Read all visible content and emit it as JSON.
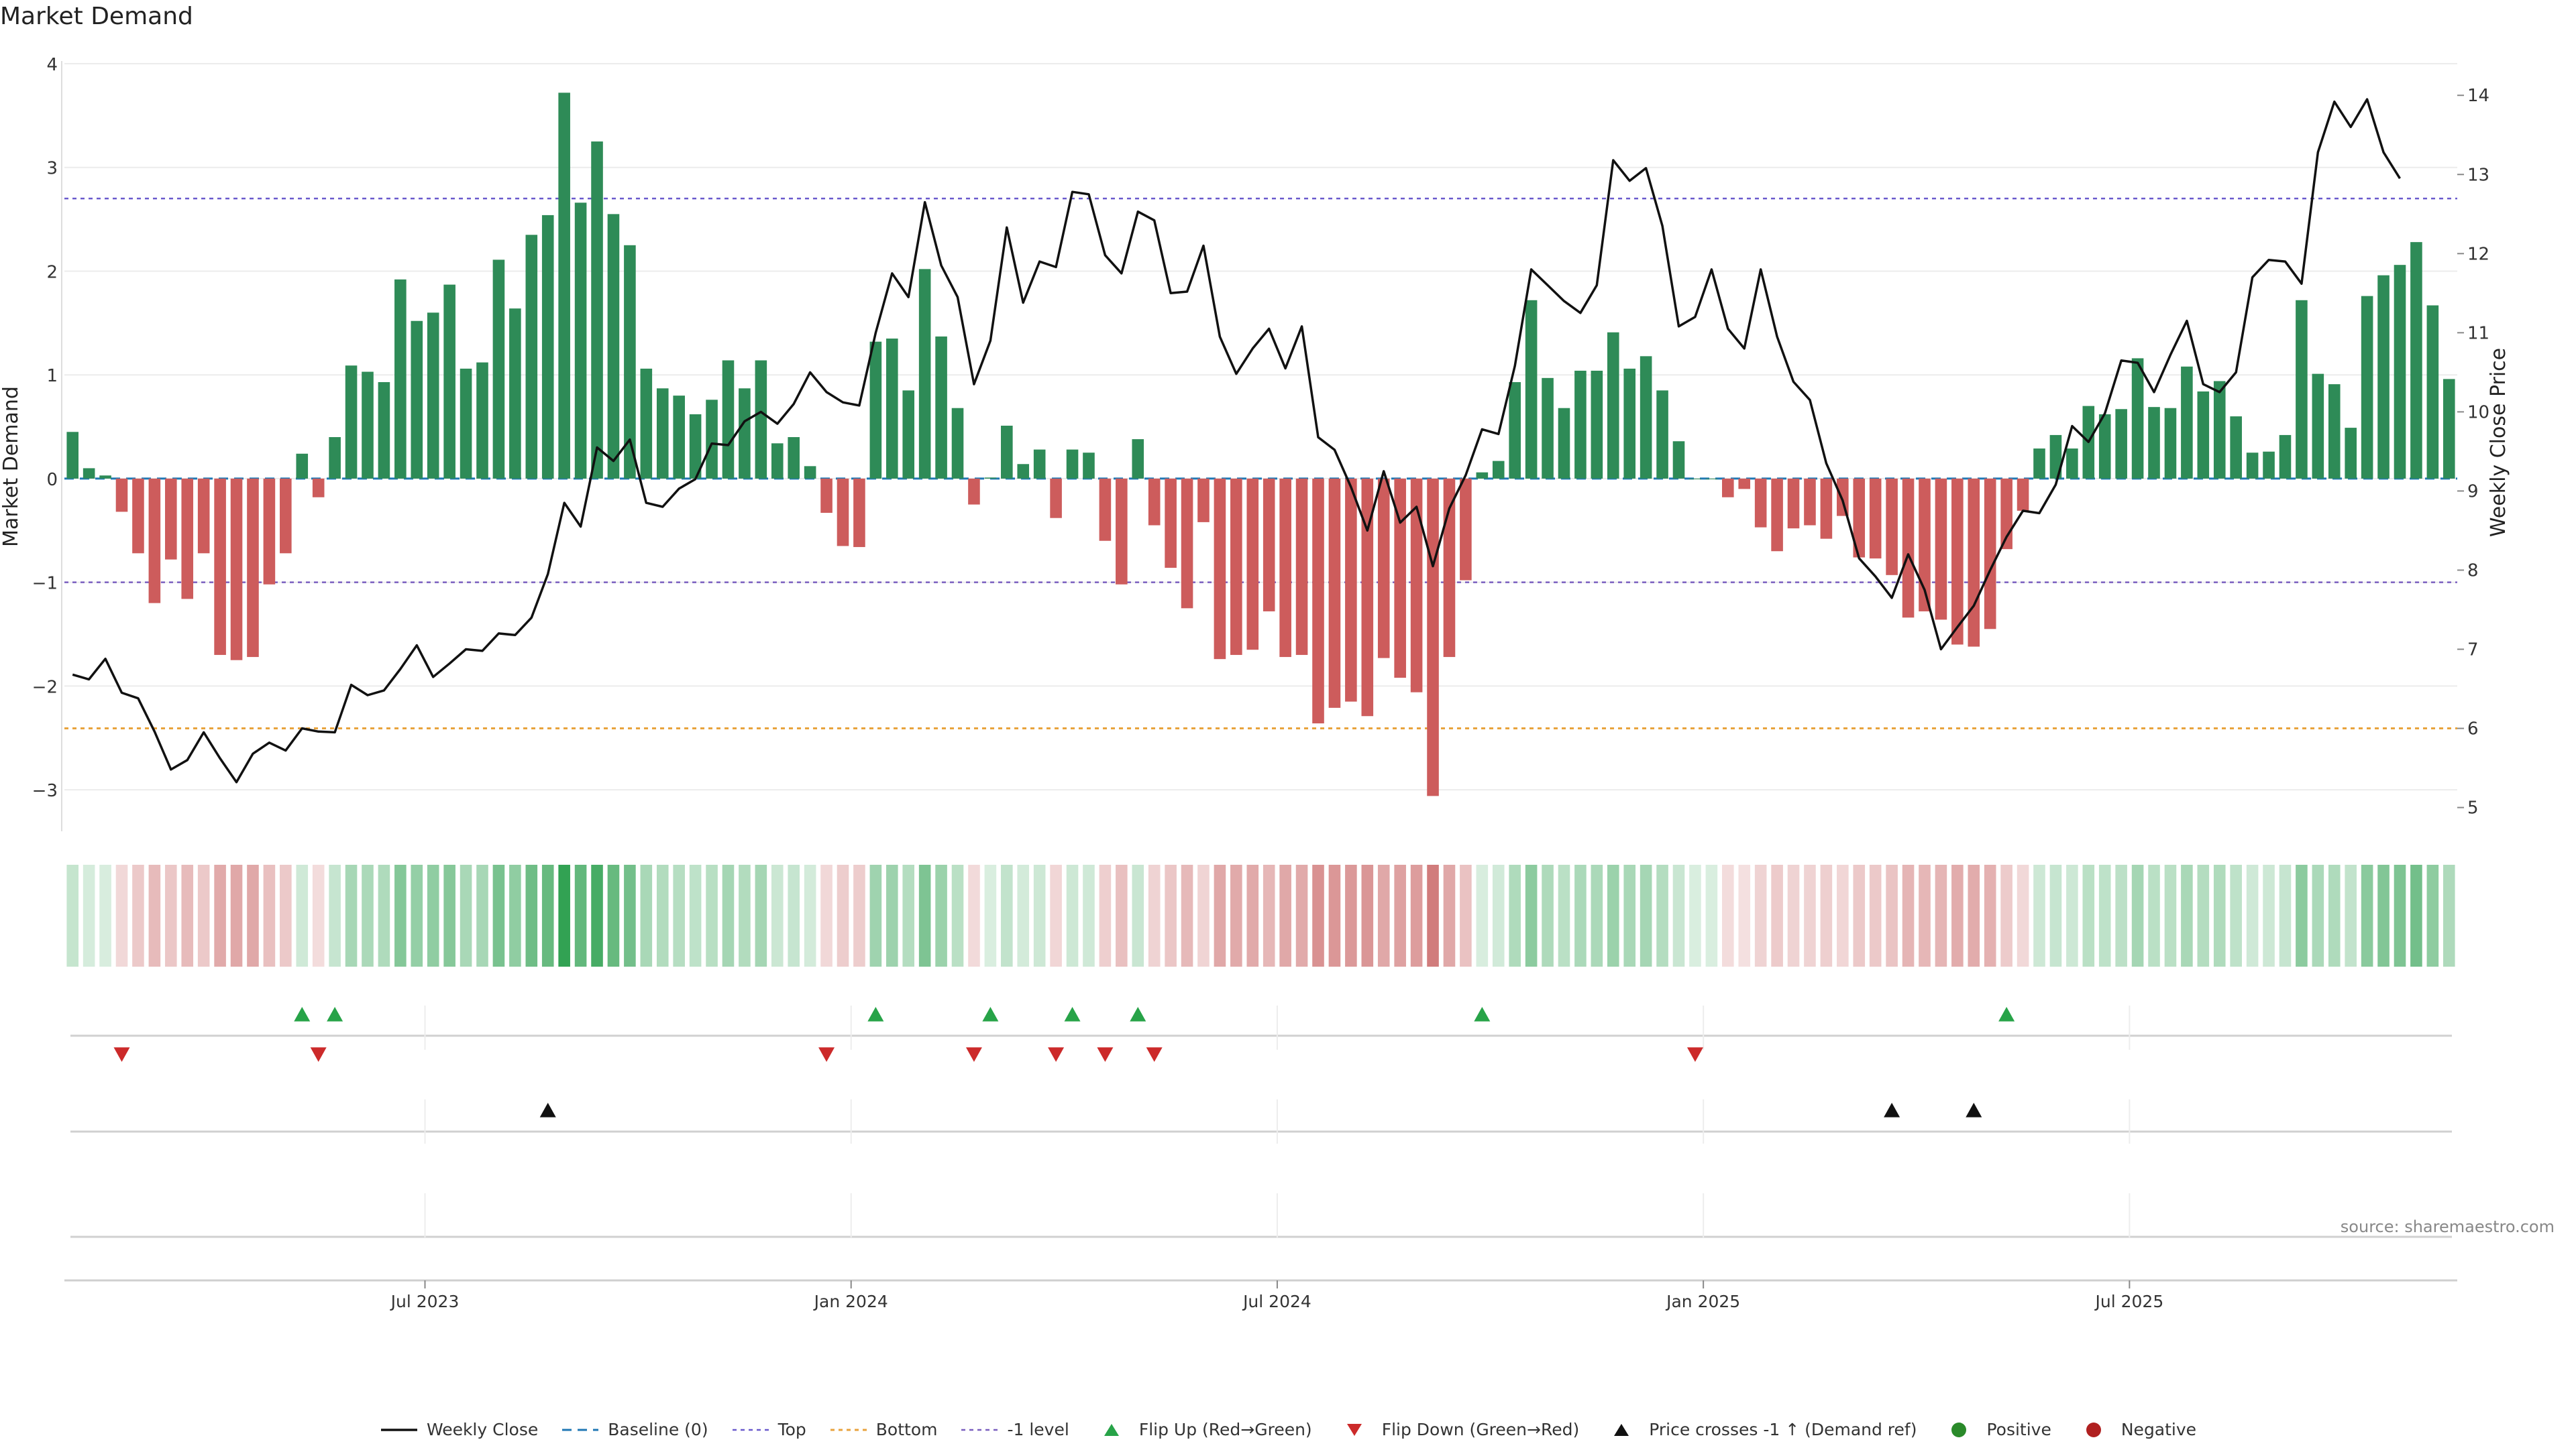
{
  "chart_data": {
    "type": "bar",
    "title": "Market Demand",
    "ylabel": "Market Demand",
    "y2label": "Weekly Close Price",
    "ylim": [
      -3.4,
      4.0
    ],
    "y2lim": [
      4.7,
      14.4
    ],
    "yticks": [
      4,
      3,
      2,
      1,
      0,
      -1,
      -2,
      -3
    ],
    "y2ticks": [
      14,
      13,
      12,
      11,
      10,
      9,
      8,
      7,
      6,
      5
    ],
    "x_date_labels": [
      "Jul 2023",
      "Jan 2024",
      "Jul 2024",
      "Jan 2025",
      "Jul 2025"
    ],
    "x_date_label_positions_week_index": [
      22,
      48,
      74,
      100,
      126
    ],
    "reference_lines": {
      "top": 2.7,
      "bottom": -2.4,
      "minus_one_level": -1.0,
      "baseline": 0
    },
    "demand": [
      0.45,
      0.1,
      0.03,
      -0.32,
      -0.72,
      -1.2,
      -0.78,
      -1.16,
      -0.72,
      -1.7,
      -1.75,
      -1.72,
      -1.02,
      -0.72,
      0.24,
      -0.18,
      0.4,
      1.09,
      1.03,
      0.93,
      1.92,
      1.52,
      1.6,
      1.87,
      1.06,
      1.12,
      2.11,
      1.64,
      2.35,
      2.54,
      3.72,
      2.66,
      3.25,
      2.55,
      2.25,
      1.06,
      0.87,
      0.8,
      0.62,
      0.76,
      1.14,
      0.87,
      1.14,
      0.34,
      0.4,
      0.12,
      -0.33,
      -0.65,
      -0.66,
      1.32,
      1.35,
      0.85,
      2.02,
      1.37,
      0.68,
      -0.25,
      0.01,
      0.51,
      0.14,
      0.28,
      -0.38,
      0.28,
      0.25,
      -0.6,
      -1.02,
      0.38,
      -0.45,
      -0.86,
      -1.25,
      -0.42,
      -1.74,
      -1.7,
      -1.65,
      -1.28,
      -1.72,
      -1.7,
      -2.36,
      -2.21,
      -2.15,
      -2.29,
      -1.73,
      -1.92,
      -2.06,
      -3.06,
      -1.72,
      -0.98,
      0.06,
      0.17,
      0.93,
      1.72,
      0.97,
      0.68,
      1.04,
      1.04,
      1.41,
      1.06,
      1.18,
      0.85,
      0.36,
      0,
      0,
      -0.18,
      -0.1,
      -0.47,
      -0.7,
      -0.48,
      -0.45,
      -0.58,
      -0.36,
      -0.76,
      -0.77,
      -0.93,
      -1.34,
      -1.28,
      -1.36,
      -1.6,
      -1.62,
      -1.45,
      -0.68,
      -0.31,
      0.29,
      0.42,
      0.29,
      0.7,
      0.62,
      0.67,
      1.16,
      0.69,
      0.68,
      1.08,
      0.84,
      0.94,
      0.6,
      0.25,
      0.26,
      0.42,
      1.72,
      1.01,
      0.91,
      0.49,
      1.76,
      1.96,
      2.06,
      2.28,
      1.67,
      0.96
    ],
    "weekly_close": [
      6.68,
      6.62,
      6.88,
      6.45,
      6.38,
      5.96,
      5.48,
      5.6,
      5.95,
      5.62,
      5.32,
      5.68,
      5.82,
      5.72,
      6.0,
      5.96,
      5.95,
      6.55,
      6.42,
      6.48,
      6.75,
      7.05,
      6.65,
      6.82,
      7.0,
      6.98,
      7.2,
      7.18,
      7.4,
      7.95,
      8.85,
      8.55,
      9.55,
      9.38,
      9.65,
      8.85,
      8.8,
      9.03,
      9.15,
      9.6,
      9.58,
      9.88,
      10.0,
      9.85,
      10.1,
      10.5,
      10.25,
      10.12,
      10.08,
      11.0,
      11.75,
      11.45,
      12.65,
      11.85,
      11.45,
      10.35,
      10.9,
      12.33,
      11.38,
      11.9,
      11.83,
      12.78,
      12.75,
      11.98,
      11.75,
      12.53,
      12.42,
      11.5,
      11.52,
      12.1,
      10.95,
      10.48,
      10.8,
      11.05,
      10.55,
      11.08,
      9.68,
      9.52,
      9.05,
      8.5,
      9.25,
      8.6,
      8.8,
      8.05,
      8.78,
      9.2,
      9.78,
      9.72,
      10.58,
      11.8,
      11.6,
      11.4,
      11.25,
      11.6,
      13.18,
      12.92,
      13.08,
      12.35,
      11.08,
      11.2,
      11.8,
      11.05,
      10.8,
      11.8,
      10.95,
      10.38,
      10.15,
      9.35,
      8.88,
      8.15,
      7.92,
      7.65,
      8.2,
      7.75,
      7.0,
      7.28,
      7.55,
      8.0,
      8.42,
      8.75,
      8.72,
      9.08,
      9.82,
      9.62,
      9.98,
      10.65,
      10.62,
      10.25,
      10.72,
      11.15,
      10.35,
      10.25,
      10.5,
      11.7,
      11.92,
      11.9,
      11.62,
      13.28,
      13.92,
      13.6,
      13.95,
      13.28,
      12.95
    ],
    "flip_up_week_index": [
      14,
      16,
      49,
      56,
      61,
      65,
      86,
      118
    ],
    "flip_down_week_index": [
      3,
      15,
      46,
      55,
      60,
      63,
      66,
      99
    ],
    "price_crosses_minus1_up_week_index": [
      29,
      111,
      116
    ],
    "heatmap_strip": "one cell per week, colored by demand sign and magnitude",
    "legend": [
      "Weekly Close",
      "Baseline (0)",
      "Top",
      "Bottom",
      "-1 level",
      "Flip Up (Red→Green)",
      "Flip Down (Green→Red)",
      "Price crosses -1 ↑ (Demand ref)",
      "Positive",
      "Negative"
    ],
    "colors": {
      "positive": "#2e8b57",
      "negative": "#cd5c5c",
      "price": "#111111",
      "top": "#6a5acd",
      "bottom": "#e8a33d",
      "minus_one": "#7a5fbf",
      "baseline": "#1f77b4",
      "flip_up": "#27a348",
      "flip_down": "#cc2a2a",
      "cross_up": "#111111",
      "legend_positive": "#2a8a2a",
      "legend_negative": "#b02020"
    }
  },
  "source_label": "source: sharemaestro.com"
}
